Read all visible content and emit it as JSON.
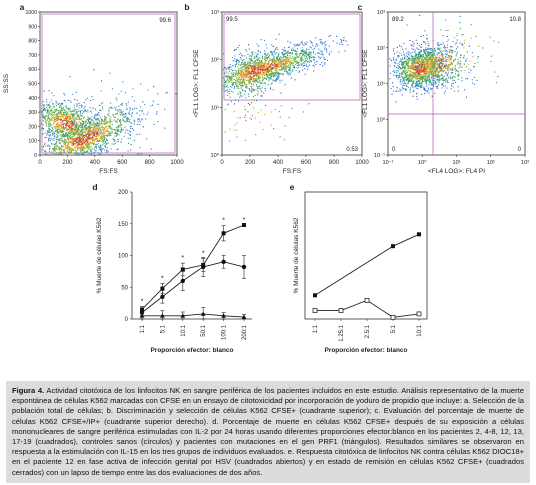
{
  "figure": {
    "panels": [
      {
        "letter": "a"
      },
      {
        "letter": "b"
      },
      {
        "letter": "c"
      },
      {
        "letter": "d"
      },
      {
        "letter": "e"
      }
    ],
    "caption": {
      "label": "Figura 4.",
      "text": "Actividad citotóxica de los linfocitos NK en sangre periférica de los pacientes incluidos en este estudio. Análisis representativo de la muerte espontánea de células K562 marcadas con CFSE en un ensayo de citotoxicidad por incorporación de yoduro de propidio que incluye: a. Selección de la población total de células; b. Discriminación y selección de células K562 CFSE+ (cuadrante superior); c. Evaluación del porcentaje de muerte de células K562 CFSE+/IP+ (cuadrante superior derecho). d. Porcentaje de muerte en células K562 CFSE+ después de su exposición a células mononucleares de sangre periférica estimuladas con IL-2 por 24 horas usando diferentes proporciones efector:blanco en los pacientes 2, 4-8, 12, 13, 17-19 (cuadrados), controles sanos (círculos) y pacientes con mutaciones en el gen PRF1 (triángulos). Resultados similares se observaron en respuesta a la estimulación con IL-15 en los tres grupos de individuos evaluados. e. Respuesta citotóxica de linfocitos NK contra células K562 DIOC18+ en el paciente 12 en fase activa de infección genital por HSV (cuadrados abiertos) y en estado de remisión en células K562 CFSE+ (cuadrados cerrados) con un lapso de tiempo entre las dos evaluaciones de dos años."
    }
  },
  "chart_data": [
    {
      "panel": "a",
      "type": "scatter",
      "xlabel": "FS:FS",
      "ylabel": "SS:SS",
      "xlim": [
        0,
        1000
      ],
      "ylim": [
        0,
        1000
      ],
      "xticks": [
        "0",
        "200",
        "400",
        "600",
        "800",
        "1000"
      ],
      "yticks": [
        "0",
        "100",
        "200",
        "300",
        "400",
        "500",
        "600",
        "700",
        "800",
        "900",
        "1000"
      ],
      "gate_label": "99.6",
      "points_color": "#2a6fd0"
    },
    {
      "panel": "b",
      "type": "scatter",
      "xlabel": "FS:FS",
      "ylabel": "<FL1 LOG>: FL1 CFSE",
      "xlim": [
        0,
        1000
      ],
      "ylim_log": [
        1,
        1000
      ],
      "xticks": [
        "0",
        "200",
        "400",
        "600",
        "800",
        "1000"
      ],
      "yticks": [
        "10⁰",
        "10¹",
        "10²",
        "10³"
      ],
      "quadrant_labels": [
        "99.5",
        "0.53"
      ]
    },
    {
      "panel": "c",
      "type": "scatter",
      "xlabel": "<FL4 LOG>: FL4 PI",
      "ylabel": "<FL1 LOG>: FL1 CFSE",
      "xticks": [
        "10⁻¹",
        "10⁰",
        "10¹",
        "10²",
        "10³"
      ],
      "yticks": [
        "10⁻¹",
        "10⁰",
        "10¹",
        "10²",
        "10³"
      ],
      "quadrant_labels": [
        "89.2",
        "10.8",
        "0",
        "0"
      ]
    },
    {
      "panel": "d",
      "type": "line",
      "xlabel": "Proporción efector: blanco",
      "ylabel": "% Muerte de células K562",
      "categories": [
        "1:1",
        "5:1",
        "10:1",
        "50:1",
        "100:1",
        "200:1"
      ],
      "ylim": [
        0,
        200
      ],
      "yticks": [
        "0",
        "50",
        "100",
        "150",
        "200"
      ],
      "significance_marker": "*",
      "series": [
        {
          "marker": "square",
          "values": [
            15,
            48,
            78,
            85,
            135,
            148
          ],
          "err": [
            5,
            8,
            10,
            10,
            12,
            0
          ]
        },
        {
          "marker": "circle",
          "values": [
            10,
            35,
            60,
            82,
            90,
            82
          ],
          "err": [
            5,
            10,
            15,
            15,
            10,
            18
          ]
        },
        {
          "marker": "triangle",
          "values": [
            5,
            5,
            5,
            8,
            5,
            3
          ],
          "err": [
            5,
            8,
            6,
            10,
            5,
            4
          ]
        }
      ]
    },
    {
      "panel": "e",
      "type": "line",
      "xlabel": "Proporción efector: blanco",
      "ylabel": "% Muerte de células K562",
      "categories": [
        "1:1",
        "1.25:1",
        "2.5:1",
        "5:1",
        "10:1"
      ],
      "ylim": [
        0,
        150
      ],
      "yticks": [
        "0",
        "50",
        "100",
        "150"
      ],
      "series": [
        {
          "marker": "square-filled",
          "values": [
            28,
            null,
            null,
            86,
            100
          ]
        },
        {
          "marker": "square-open",
          "values": [
            10,
            10,
            22,
            2,
            6
          ]
        }
      ]
    }
  ]
}
